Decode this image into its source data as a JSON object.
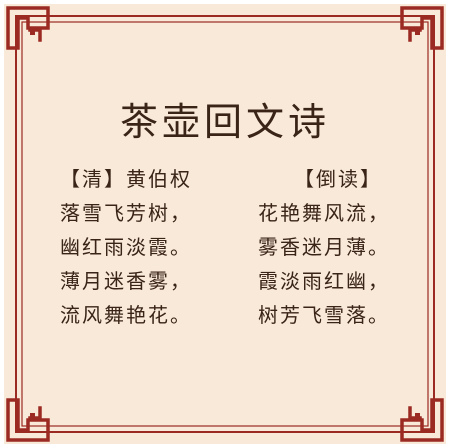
{
  "poem": {
    "title": "茶壶回文诗",
    "left": {
      "heading": "【清】黄伯权",
      "lines": [
        "落雪飞芳树，",
        "幽红雨淡霞。",
        "薄月迷香雾，",
        "流风舞艳花。"
      ]
    },
    "right": {
      "heading": "【倒读】",
      "lines": [
        "花艳舞风流，",
        "雾香迷月薄。",
        "霞淡雨红幽，",
        "树芳飞雪落。"
      ]
    }
  },
  "colors": {
    "frame": "#9b2b22",
    "background": "#f8e9d9",
    "text": "#3a2418"
  }
}
